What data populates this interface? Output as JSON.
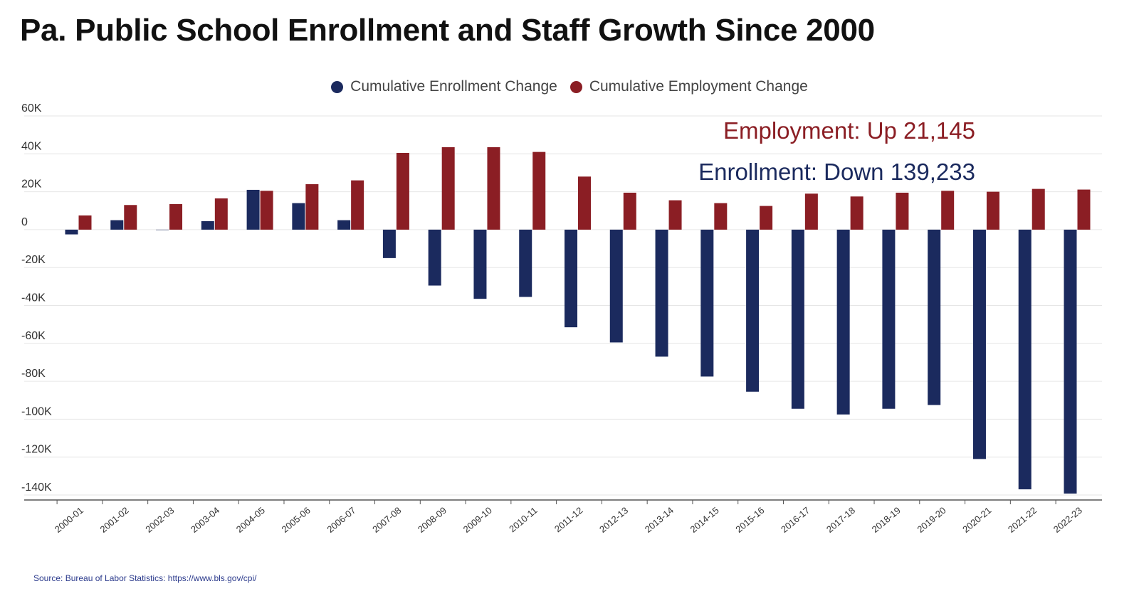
{
  "chart_data": {
    "type": "bar",
    "title": "Pa. Public School Enrollment and Staff Growth Since 2000",
    "xlabel": "",
    "ylabel": "",
    "ylim": [
      -140000,
      60000
    ],
    "yticks": [
      60000,
      40000,
      20000,
      0,
      -20000,
      -40000,
      -60000,
      -80000,
      -100000,
      -120000,
      -140000
    ],
    "ytick_labels": [
      "60K",
      "40K",
      "20K",
      "0",
      "-20K",
      "-40K",
      "-60K",
      "-80K",
      "-100K",
      "-120K",
      "-140K"
    ],
    "grid": true,
    "legend_position": "top-center",
    "categories": [
      "2000-01",
      "2001-02",
      "2002-03",
      "2003-04",
      "2004-05",
      "2005-06",
      "2006-07",
      "2007-08",
      "2008-09",
      "2009-10",
      "2010-11",
      "2011-12",
      "2012-13",
      "2013-14",
      "2014-15",
      "2015-16",
      "2016-17",
      "2017-18",
      "2018-19",
      "2019-20",
      "2020-21",
      "2021-22",
      "2022-23"
    ],
    "series": [
      {
        "name": "Cumulative Enrollment Change",
        "color": "#1b2a5e",
        "values": [
          -2500,
          5000,
          0,
          4500,
          21000,
          14000,
          5000,
          -15000,
          -29500,
          -36500,
          -35500,
          -51500,
          -59500,
          -67000,
          -77500,
          -85500,
          -94500,
          -97500,
          -94500,
          -92500,
          -121000,
          -137000,
          -139233
        ]
      },
      {
        "name": "Cumulative Employment Change",
        "color": "#8b1e24",
        "values": [
          7500,
          13000,
          13500,
          16500,
          20500,
          24000,
          26000,
          40500,
          43500,
          43500,
          41000,
          28000,
          19500,
          15500,
          14000,
          12500,
          19000,
          17500,
          19500,
          20500,
          20000,
          21500,
          21145
        ]
      }
    ],
    "annotations": {
      "employment": "Employment: Up 21,145",
      "enrollment": "Enrollment: Down 139,233"
    },
    "source": "Source: Bureau of Labor Statistics: https://www.bls.gov/cpi/"
  }
}
